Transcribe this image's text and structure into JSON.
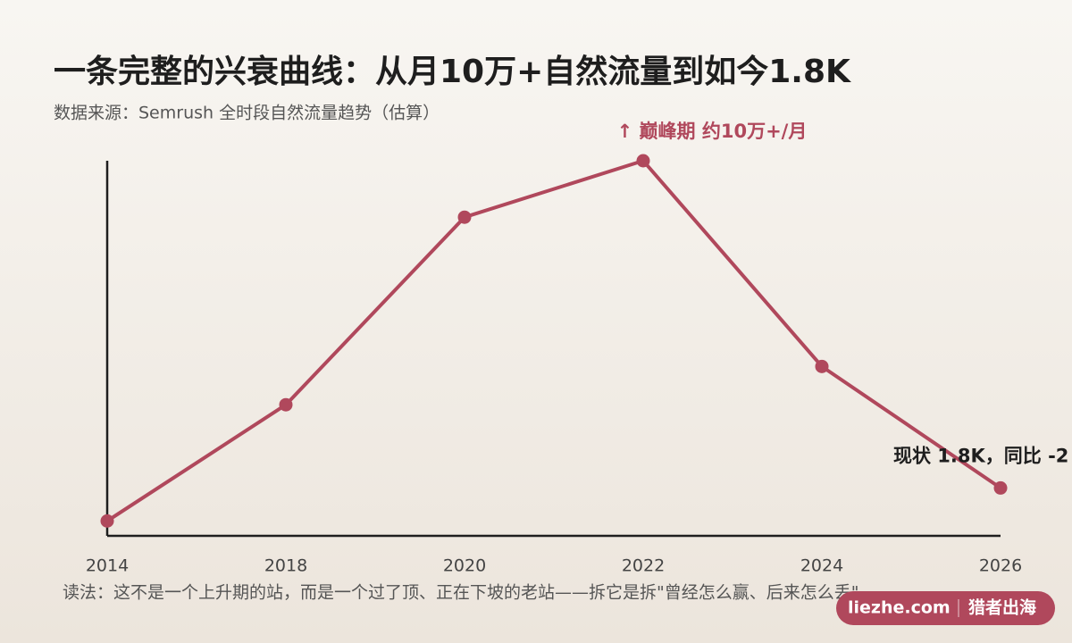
{
  "chart_data": {
    "type": "line",
    "title": "一条完整的兴衰曲线：从月10万+自然流量到如今1.8K",
    "subtitle": "数据来源：Semrush 全时段自然流量趋势（估算）",
    "categories": [
      "2014",
      "2018",
      "2020",
      "2022",
      "2024",
      "2026"
    ],
    "values": [
      1200,
      5000,
      50000,
      100000,
      8000,
      1800
    ],
    "color": "#b0485c",
    "log_scale": true,
    "ylim": [
      1000,
      100000
    ],
    "annotations": [
      "↑ 巅峰期 约10万+/月",
      "现状 1.8K，同比 -2"
    ],
    "note": "读法：这不是一个上升期的站，而是一个过了顶、正在下坡的老站——拆它是拆\"曾经怎么赢、后来怎么丢\"",
    "badge": {
      "site": "liezhe.com",
      "brand": "猎者出海"
    }
  }
}
